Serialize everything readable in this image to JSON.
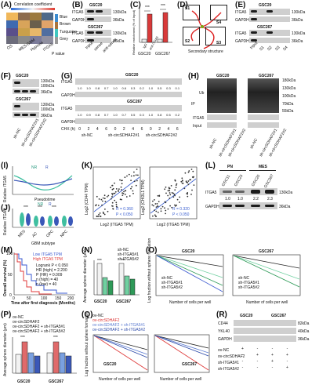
{
  "panels": {
    "A": {
      "label": "(A)",
      "legend_title": "Correlation coefficient",
      "modules": [
        "Blue",
        "Brown",
        "Turquoise",
        "Grey"
      ],
      "xlabels": [
        "OS",
        "MES-GBM",
        "Hypoxia",
        "ITGA5"
      ],
      "pvalue": "P value",
      "colors": [
        "#3b8bd0",
        "#a8743e",
        "#3fc7c0",
        "#9a9a9a"
      ]
    },
    "B": {
      "label": "(B)",
      "cell1": "GSC20",
      "cell2": "GSC267",
      "protein": "ITGA5",
      "loading": "GAPDH",
      "mw1": "130kDa",
      "mw2": "36kDa",
      "lanes": [
        "Input",
        "sense",
        "anti-sense"
      ]
    },
    "C": {
      "label": "(C)",
      "ylabel": "Relative enrichment (% of Input)",
      "groups": [
        "GSC20",
        "GSC267"
      ],
      "bars": [
        "IgG",
        "anti-ITGA5"
      ],
      "sig": "***"
    },
    "D": {
      "label": "(D)",
      "caption": "Secondary structure",
      "sites": [
        "S1",
        "S2",
        "S3",
        "S4"
      ]
    },
    "E": {
      "label": "(E)",
      "cell1": "GSC20",
      "cell2": "GSC267",
      "protein": "ITGA5",
      "loading": "GAPDH",
      "lanes": [
        "Input",
        "S1",
        "S2",
        "S3",
        "S4"
      ]
    },
    "F": {
      "label": "(F)",
      "cell1": "GSC20",
      "cell2": "GSC267",
      "mw": [
        "130kDa",
        "100kDa",
        "36kDa"
      ],
      "rows": [
        "sh-NC",
        "sh-circSDHAF2#1",
        "sh-circSDHAF2#2"
      ]
    },
    "G": {
      "label": "(G)",
      "cell1": "GSC20",
      "cell2": "GSC267",
      "protein": "ITGA5",
      "loading": "GAPDH",
      "chx": "CHX (h)",
      "times": [
        "0",
        "2",
        "4",
        "6"
      ],
      "groups": [
        "sh-NC",
        "sh-circSDHAF2#1",
        "sh-circSDHAF2#2"
      ],
      "q1": [
        "1.0",
        "1.0",
        "0.8",
        "0.7",
        "1.0",
        "0.6",
        "0.3",
        "0.2",
        "1.0",
        "0.5",
        "0.3",
        "0.1"
      ],
      "q2": [
        "1.0",
        "0.9",
        "0.8",
        "0.7",
        "1.0",
        "0.7",
        "0.5",
        "0.3",
        "1.0",
        "0.8",
        "0.5",
        "0.2"
      ]
    },
    "H": {
      "label": "(H)",
      "cell1": "GSC20",
      "cell2": "GSC267",
      "ub": "Ub",
      "protein": "ITGA5",
      "ip": "IP",
      "input": "Input",
      "mw": [
        "180kDa",
        "130kDa",
        "100kDa",
        "70kDa",
        "55kDa"
      ],
      "rows": [
        "sh-NC",
        "sh-circSDHAF2#1",
        "sh-circSDHAF2#2"
      ]
    },
    "I": {
      "label": "(I)",
      "ylabel": "Relative ITGA5",
      "xlabel": "Pseudotime",
      "legend": [
        "NR",
        "R"
      ]
    },
    "J": {
      "label": "(J)",
      "ylabel": "Relative ITGA5",
      "xlabel": "GBM subtype",
      "legend": [
        "NR",
        "R"
      ],
      "subtypes": [
        "MES",
        "AC",
        "OPC",
        "NPC"
      ],
      "sig": "***"
    },
    "K": {
      "label": "(K)",
      "xlabel": "Log2 (ITGA5 TPM)",
      "ylabel1": "Log2 (CD44 TPM)",
      "ylabel2": "Log2 (CHI3L1 TPM)",
      "r1": "R = 0.360",
      "p1": "P < 0.050",
      "r2": "R = 0.320",
      "p2": "P < 0.050"
    },
    "L": {
      "label": "(L)",
      "groups": [
        "PN",
        "MES"
      ],
      "cells": [
        "GSC11",
        "GSC23",
        "GSC20",
        "GSC267"
      ],
      "protein": "ITGA5",
      "loading": "GAPDH",
      "values": [
        "1.0",
        "1.0",
        "2.2",
        "2.3"
      ],
      "mw1": "130kDa",
      "mw2": "36kDa"
    },
    "M": {
      "label": "(M)",
      "ylabel": "Overall survival (%)",
      "xlabel": "Time after first diagnosis (Months)",
      "legend": [
        "Low ITGA5 TPM",
        "High ITGA5 TPM"
      ],
      "stats": [
        "Logrank P < 0.050",
        "HR (high) = 2.200",
        "P (HR) = 0.009",
        "n (high) = 40",
        "n (low) = 40"
      ],
      "xticks": [
        "0",
        "50",
        "100",
        "150",
        "200"
      ],
      "yticks": [
        "0",
        "50",
        "100"
      ]
    },
    "N": {
      "label": "(N)",
      "ylabel": "Average sphere diameter (μm)",
      "groups": [
        "GSC20",
        "GSC267"
      ],
      "legend": [
        "sh-NC",
        "sh-ITGA5#1",
        "sh-ITGA5#2"
      ],
      "sig": "***"
    },
    "O": {
      "label": "(O)",
      "titles": [
        "GSC20",
        "GSC267"
      ],
      "xlabel": "Number of cells per well",
      "ylabel": "Log fraction without sphere formation",
      "legend": [
        "sh-NC",
        "sh-ITGA5#1",
        "sh-ITGA5#2"
      ]
    },
    "P": {
      "label": "(P)",
      "ylabel": "Average sphere diameter (μm)",
      "groups": [
        "GSC20",
        "GSC267"
      ],
      "legend": [
        "ov-NC",
        "ov-circSDHAF2",
        "ov-circSDHAF2 + sh-ITGA5#1",
        "ov-circSDHAF2 + sh-ITGA5#2"
      ],
      "sig": "***"
    },
    "Q": {
      "label": "(Q)",
      "titles": [
        "GSC20",
        "GSC267"
      ],
      "xlabel": "Number of cells per well",
      "ylabel": "Log fraction without sphere formation",
      "legend": [
        "ov-NC",
        "ov-circSDHAF2",
        "ov-circSDHAF2 + sh-ITGA5#1",
        "ov-circSDHAF2 + sh-ITGA5#2"
      ]
    },
    "R": {
      "label": "(R)",
      "cell1": "GSC20",
      "cell2": "GSC267",
      "proteins": [
        "CD44",
        "YKL40",
        "GAPDH"
      ],
      "mw": [
        "82kDa",
        "40kDa",
        "36kDa"
      ],
      "rows": [
        "ov-NC",
        "ov-circSDHAF2",
        "sh-ITGA5#1",
        "sh-ITGA5#2"
      ],
      "signs": [
        "+",
        "-",
        "-",
        "-",
        "-",
        "+",
        "+",
        "+",
        "-",
        "-",
        "+",
        "-",
        "-",
        "-",
        "-",
        "+"
      ]
    }
  }
}
